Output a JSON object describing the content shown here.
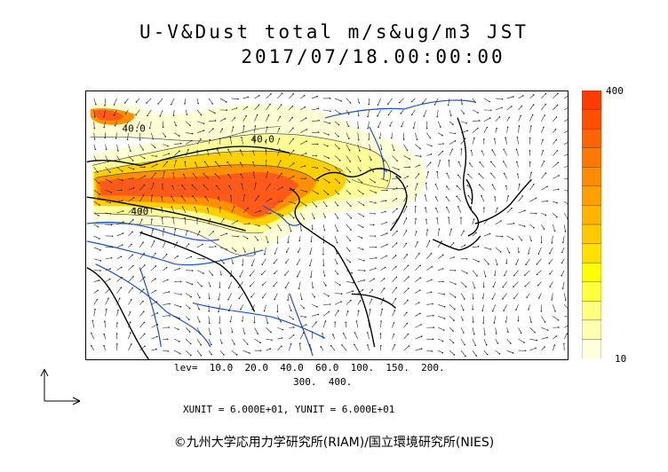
{
  "title": {
    "line1": "U-V&Dust total m/s&ug/m3 JST",
    "line2": "2017/07/18.00:00:00"
  },
  "map": {
    "contour_labels": [
      "40.0",
      "40.0",
      "400"
    ],
    "land_color": "#ffffff",
    "river_color": "#1a4fd6",
    "coast_color": "#000000"
  },
  "legend": {
    "max_label": "400",
    "min_label": "10",
    "colors": [
      "#ffffdd",
      "#ffffb0",
      "#ffff80",
      "#ffff40",
      "#ffff00",
      "#ffe000",
      "#ffc800",
      "#ffb400",
      "#ffa000",
      "#ff8c00",
      "#ff7800",
      "#ff6400",
      "#ff5000",
      "#ff3c00"
    ]
  },
  "levels": {
    "line1": "lev=  10.0  20.0  40.0  60.0  100.  150.  200.",
    "line2": "300.  400."
  },
  "units": {
    "text": "XUNIT = 6.000E+01, YUNIT = 6.000E+01"
  },
  "footer": {
    "copyright": "©九州大学応用力学研究所(RIAM)/国立環境研究所(NIES)"
  }
}
